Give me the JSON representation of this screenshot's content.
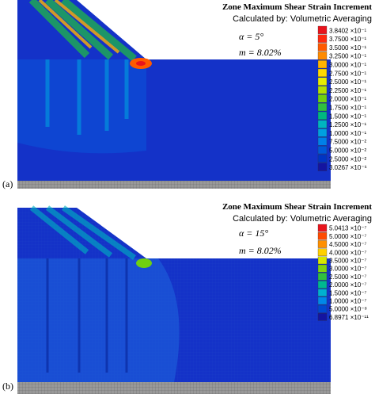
{
  "panels": [
    {
      "label": "(a)",
      "title": "Zone Maximum Shear Strain Increment",
      "subtitle": "Calculated by: Volumetric Averaging",
      "alpha": "α = 5°",
      "m": "m = 8.02%",
      "legend": [
        {
          "label": "3.8402 ×10⁻¹",
          "color": "#e8141c"
        },
        {
          "label": "3.7500 ×10⁻¹",
          "color": "#ff2a10"
        },
        {
          "label": "3.5000 ×10⁻¹",
          "color": "#ff5a00"
        },
        {
          "label": "3.2500 ×10⁻¹",
          "color": "#ff8a00"
        },
        {
          "label": "3.0000 ×10⁻¹",
          "color": "#ffb400"
        },
        {
          "label": "2.7500 ×10⁻¹",
          "color": "#ffd800"
        },
        {
          "label": "2.5000 ×10⁻¹",
          "color": "#e8ec00"
        },
        {
          "label": "2.2500 ×10⁻¹",
          "color": "#b4e000"
        },
        {
          "label": "2.0000 ×10⁻¹",
          "color": "#70d010"
        },
        {
          "label": "1.7500 ×10⁻¹",
          "color": "#30c040"
        },
        {
          "label": "1.5000 ×10⁻¹",
          "color": "#00b880"
        },
        {
          "label": "1.2500 ×10⁻¹",
          "color": "#00b4c0"
        },
        {
          "label": "1.0000 ×10⁻¹",
          "color": "#00a0e0"
        },
        {
          "label": "7.5000 ×10⁻²",
          "color": "#0080e8"
        },
        {
          "label": "5.0000 ×10⁻²",
          "color": "#0058d8"
        },
        {
          "label": "2.5000 ×10⁻²",
          "color": "#0034c4"
        },
        {
          "label": "3.0267 ×10⁻⁶",
          "color": "#1414a0"
        }
      ]
    },
    {
      "label": "(b)",
      "title": "Zone Maximum Shear Strain Increment",
      "subtitle": "Calculated by: Volumetric Averaging",
      "alpha": "α = 15°",
      "m": "m = 8.02%",
      "legend": [
        {
          "label": "5.0413 ×10⁻⁷",
          "color": "#e8141c"
        },
        {
          "label": "5.0000 ×10⁻⁷",
          "color": "#ff4a00"
        },
        {
          "label": "4.5000 ×10⁻⁷",
          "color": "#ff9000"
        },
        {
          "label": "4.0000 ×10⁻⁷",
          "color": "#ffd000"
        },
        {
          "label": "3.5000 ×10⁻⁷",
          "color": "#d8e800"
        },
        {
          "label": "3.0000 ×10⁻⁷",
          "color": "#80d410"
        },
        {
          "label": "2.5000 ×10⁻⁷",
          "color": "#30c040"
        },
        {
          "label": "2.0000 ×10⁻⁷",
          "color": "#00b890"
        },
        {
          "label": "1.5000 ×10⁻⁷",
          "color": "#00b0d0"
        },
        {
          "label": "1.0000 ×10⁻⁷",
          "color": "#0088e8"
        },
        {
          "label": "5.0000 ×10⁻⁸",
          "color": "#0048d0"
        },
        {
          "label": "6.8971 ×10⁻¹¹",
          "color": "#1414a0"
        }
      ]
    }
  ]
}
